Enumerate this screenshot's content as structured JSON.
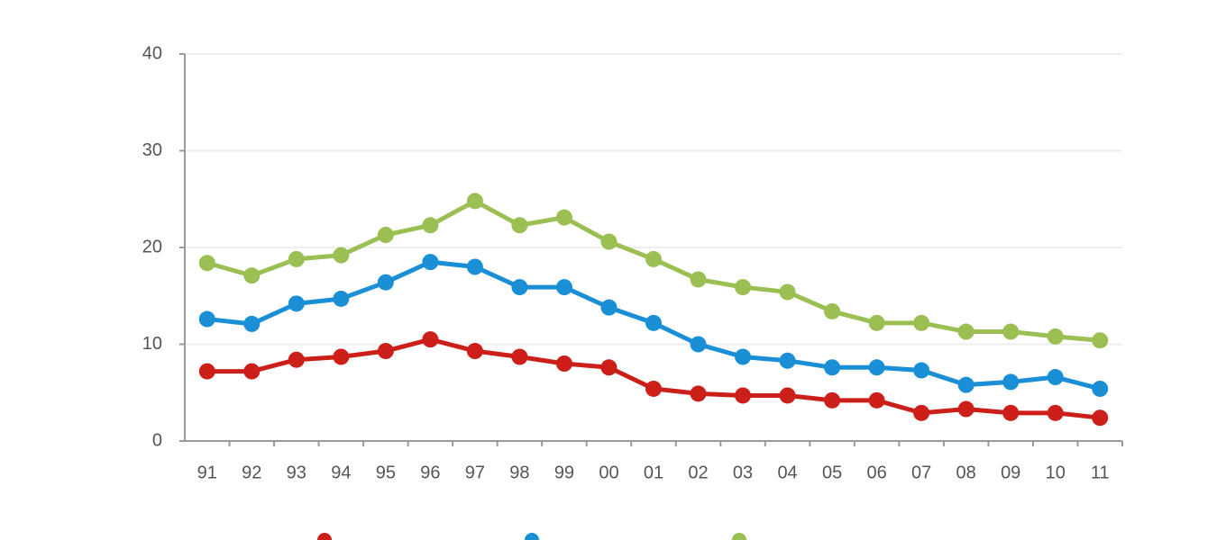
{
  "chart_data": {
    "type": "line",
    "categories": [
      "91",
      "92",
      "93",
      "94",
      "95",
      "96",
      "97",
      "98",
      "99",
      "00",
      "01",
      "02",
      "03",
      "04",
      "05",
      "06",
      "07",
      "08",
      "09",
      "10",
      "11"
    ],
    "series": [
      {
        "color": "#cc1f1a",
        "values": [
          7.2,
          7.2,
          8.4,
          8.7,
          9.3,
          10.5,
          9.3,
          8.7,
          8.0,
          7.6,
          5.4,
          4.9,
          4.7,
          4.7,
          4.2,
          4.2,
          2.9,
          3.3,
          2.9,
          2.9,
          2.4
        ]
      },
      {
        "color": "#1a8fd6",
        "values": [
          12.6,
          12.1,
          14.2,
          14.7,
          16.4,
          18.5,
          18.0,
          15.9,
          15.9,
          13.8,
          12.2,
          10.0,
          8.7,
          8.3,
          7.6,
          7.6,
          7.3,
          5.8,
          6.1,
          6.6,
          5.4
        ]
      },
      {
        "color": "#9bbf52",
        "values": [
          18.4,
          17.1,
          18.8,
          19.2,
          21.3,
          22.3,
          24.8,
          22.3,
          23.1,
          20.6,
          18.8,
          16.7,
          15.9,
          15.4,
          13.4,
          12.2,
          12.2,
          11.3,
          11.3,
          10.8,
          10.4
        ]
      }
    ],
    "ylim": [
      0,
      40
    ],
    "yticks": [
      0,
      10,
      20,
      30,
      40
    ],
    "grid": true
  }
}
